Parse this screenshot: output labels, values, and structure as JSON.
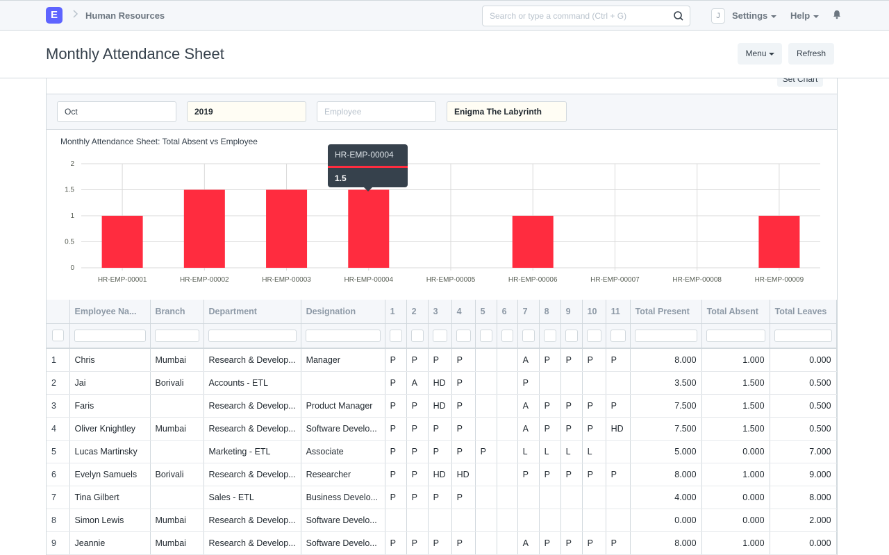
{
  "navbar": {
    "logo_letter": "E",
    "breadcrumb": "Human Resources",
    "search_placeholder": "Search or type a command (Ctrl + G)",
    "avatar_letter": "J",
    "settings_label": "Settings",
    "help_label": "Help"
  },
  "page": {
    "title": "Monthly Attendance Sheet",
    "menu_label": "Menu",
    "refresh_label": "Refresh",
    "set_chart_label": "Set Chart"
  },
  "filters": {
    "month": "Oct",
    "year": "2019",
    "employee_placeholder": "Employee",
    "company": "Enigma The Labyrinth"
  },
  "chart_data": {
    "type": "bar",
    "title": "Monthly Attendance Sheet: Total Absent vs Employee",
    "categories": [
      "HR-EMP-00001",
      "HR-EMP-00002",
      "HR-EMP-00003",
      "HR-EMP-00004",
      "HR-EMP-00005",
      "HR-EMP-00006",
      "HR-EMP-00007",
      "HR-EMP-00008",
      "HR-EMP-00009"
    ],
    "values": [
      1,
      1.5,
      1.5,
      1.5,
      0,
      1,
      0,
      0,
      1
    ],
    "y_ticks": [
      "0",
      "0.5",
      "1",
      "1.5",
      "2"
    ],
    "ylim": [
      0,
      2
    ],
    "color": "#ff2c3f",
    "grid": true
  },
  "tooltip": {
    "title": "HR-EMP-00004",
    "value": "1.5"
  },
  "table": {
    "columns": [
      "Employee Na...",
      "Branch",
      "Department",
      "Designation",
      "1",
      "2",
      "3",
      "4",
      "5",
      "6",
      "7",
      "8",
      "9",
      "10",
      "11",
      "Total Present",
      "Total Absent",
      "Total Leaves"
    ],
    "rows": [
      [
        "1",
        "Chris",
        "Mumbai",
        "Research & Develop...",
        "Manager",
        "P",
        "P",
        "P",
        "P",
        "",
        "",
        "A",
        "P",
        "P",
        "P",
        "P",
        "8.000",
        "1.000",
        "0.000"
      ],
      [
        "2",
        "Jai",
        "Borivali",
        "Accounts - ETL",
        "",
        "P",
        "A",
        "HD",
        "P",
        "",
        "",
        "P",
        "",
        "",
        "",
        "",
        "3.500",
        "1.500",
        "0.500"
      ],
      [
        "3",
        "Faris",
        "",
        "Research & Develop...",
        "Product Manager",
        "P",
        "P",
        "HD",
        "P",
        "",
        "",
        "A",
        "P",
        "P",
        "P",
        "P",
        "7.500",
        "1.500",
        "0.500"
      ],
      [
        "4",
        "Oliver Knightley",
        "Mumbai",
        "Research & Develop...",
        "Software Develo...",
        "P",
        "P",
        "P",
        "P",
        "",
        "",
        "A",
        "P",
        "P",
        "P",
        "HD",
        "7.500",
        "1.500",
        "0.500"
      ],
      [
        "5",
        "Lucas Martinsky",
        "",
        "Marketing - ETL",
        "Associate",
        "P",
        "P",
        "P",
        "P",
        "P",
        "",
        "L",
        "L",
        "L",
        "L",
        "",
        "5.000",
        "0.000",
        "7.000"
      ],
      [
        "6",
        "Evelyn Samuels",
        "Borivali",
        "Research & Develop...",
        "Researcher",
        "P",
        "P",
        "HD",
        "HD",
        "",
        "",
        "P",
        "P",
        "P",
        "P",
        "P",
        "8.000",
        "1.000",
        "9.000"
      ],
      [
        "7",
        "Tina Gilbert",
        "",
        "Sales - ETL",
        "Business Develo...",
        "P",
        "P",
        "P",
        "P",
        "",
        "",
        "",
        "",
        "",
        "",
        "",
        "4.000",
        "0.000",
        "8.000"
      ],
      [
        "8",
        "Simon Lewis",
        "Mumbai",
        "Research & Develop...",
        "Software Develo...",
        "",
        "",
        "",
        "",
        "",
        "",
        "",
        "",
        "",
        "",
        "",
        "0.000",
        "0.000",
        "2.000"
      ],
      [
        "9",
        "Jeannie",
        "Mumbai",
        "Research & Develop...",
        "Software Develo...",
        "P",
        "P",
        "P",
        "P",
        "",
        "",
        "A",
        "P",
        "P",
        "P",
        "P",
        "8.000",
        "1.000",
        "0.000"
      ]
    ]
  }
}
